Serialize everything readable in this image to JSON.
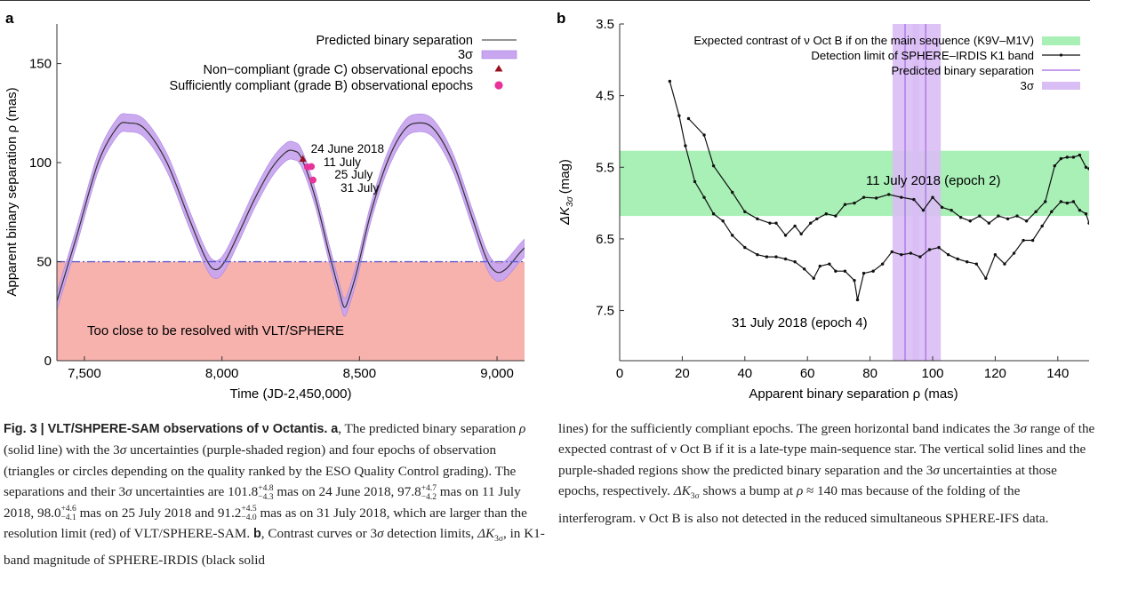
{
  "chart_data": [
    {
      "panel": "a",
      "type": "line",
      "xlabel": "Time (JD-2,450,000)",
      "ylabel": "Apparent binary separation ρ (mas)",
      "xlim": [
        7400,
        9100
      ],
      "ylim": [
        0,
        170
      ],
      "x_ticks": [
        7500,
        8000,
        8500,
        9000
      ],
      "x_tick_labels": [
        "7,500",
        "8,000",
        "8,500",
        "9,000"
      ],
      "y_ticks": [
        0,
        50,
        100,
        150
      ],
      "y_tick_labels": [
        "0",
        "50",
        "100",
        "150"
      ],
      "predicted_separation": {
        "x": [
          7400,
          7470,
          7550,
          7620,
          7660,
          7720,
          7800,
          7880,
          7940,
          7975,
          8010,
          8060,
          8120,
          8180,
          8230,
          8260,
          8290,
          8340,
          8390,
          8430,
          8445,
          8460,
          8490,
          8540,
          8600,
          8660,
          8710,
          8770,
          8840,
          8910,
          8960,
          8995,
          9030,
          9080,
          9100
        ],
        "y": [
          30,
          62,
          100,
          118,
          120,
          117,
          100,
          72,
          52,
          46,
          50,
          64,
          82,
          97,
          105,
          106,
          102,
          82,
          54,
          33,
          27,
          31,
          45,
          74,
          100,
          116,
          120,
          117,
          100,
          72,
          52,
          45,
          46,
          54,
          57
        ]
      },
      "sigma_halfwidth": 4.5,
      "epochs": [
        {
          "label": "24 June 2018",
          "x": 8294,
          "y": 101.8,
          "grade": "C"
        },
        {
          "label": "11 July",
          "x": 8311,
          "y": 97.8,
          "grade": "B"
        },
        {
          "label": "25 July",
          "x": 8325,
          "y": 98.0,
          "grade": "B"
        },
        {
          "label": "31 July",
          "x": 8331,
          "y": 91.2,
          "grade": "B"
        }
      ],
      "resolution_limit": 50,
      "resolution_text": "Too close to be resolved with VLT/SPHERE",
      "legend": [
        "Predicted binary separation",
        "3σ",
        "Non−compliant (grade C) observational epochs",
        "Sufficiently compliant (grade B) observational epochs"
      ],
      "legend_position": "top-right",
      "colors": {
        "line": "#333333",
        "band": "#c9a6f0",
        "band_edge": "#a77fe0",
        "red_region": "#f7b2ad",
        "dash": "#5a5fd0",
        "triangle": "#9b1020",
        "circle": "#e8339a"
      }
    },
    {
      "panel": "b",
      "type": "line",
      "xlabel": "Apparent binary separation ρ (mas)",
      "ylabel": "ΔK3σ (mag)",
      "ylabel_main": "ΔK",
      "ylabel_sub": "3σ",
      "ylabel_unit": "(mag)",
      "xlim": [
        0,
        150
      ],
      "ylim_inverted": [
        3.5,
        8.2
      ],
      "x_ticks": [
        0,
        20,
        40,
        60,
        80,
        100,
        120,
        140
      ],
      "x_tick_labels": [
        "0",
        "20",
        "40",
        "60",
        "80",
        "100",
        "120",
        "140"
      ],
      "y_ticks": [
        3.5,
        4.5,
        5.5,
        6.5,
        7.5
      ],
      "y_tick_labels": [
        "3.5",
        "4.5",
        "5.5",
        "6.5",
        "7.5"
      ],
      "expected_contrast_band": [
        5.27,
        6.18
      ],
      "series": [
        {
          "name": "11 July 2018 (epoch 2)",
          "x": [
            22,
            27,
            30,
            36,
            40,
            44,
            48,
            50,
            53,
            56,
            58,
            61,
            63,
            66,
            69,
            72,
            75,
            78,
            82,
            86,
            90,
            94,
            97,
            100,
            103,
            106,
            109,
            112,
            115,
            118,
            121,
            124,
            127,
            130,
            133,
            136,
            139,
            141,
            143,
            145,
            147,
            149,
            150
          ],
          "y": [
            4.82,
            5.05,
            5.48,
            5.85,
            6.12,
            6.22,
            6.28,
            6.28,
            6.45,
            6.32,
            6.43,
            6.28,
            6.22,
            6.15,
            6.18,
            6.02,
            6.0,
            5.92,
            5.93,
            5.88,
            5.92,
            5.95,
            6.1,
            5.92,
            6.06,
            6.1,
            6.2,
            6.25,
            6.18,
            6.28,
            6.18,
            6.22,
            6.18,
            6.25,
            6.12,
            5.98,
            5.48,
            5.38,
            5.36,
            5.36,
            5.33,
            5.5,
            5.52
          ]
        },
        {
          "name": "31 July 2018 (epoch 4)",
          "x": [
            16,
            19,
            21,
            24,
            27,
            30,
            33,
            36,
            40,
            44,
            47,
            50,
            53,
            56,
            59,
            62,
            64,
            67,
            69,
            72,
            75,
            76,
            78,
            81,
            84,
            87,
            90,
            93,
            96,
            99,
            102,
            105,
            108,
            111,
            114,
            117,
            120,
            123,
            126,
            129,
            132,
            135,
            138,
            141,
            143,
            145,
            147,
            149,
            150
          ],
          "y": [
            4.3,
            4.78,
            5.2,
            5.7,
            5.92,
            6.15,
            6.25,
            6.45,
            6.62,
            6.72,
            6.75,
            6.75,
            6.78,
            6.82,
            6.92,
            7.05,
            6.88,
            6.85,
            6.95,
            6.95,
            7.08,
            7.35,
            6.98,
            6.95,
            6.85,
            6.68,
            6.72,
            6.7,
            6.75,
            6.65,
            6.62,
            6.72,
            6.78,
            6.82,
            6.85,
            7.05,
            6.72,
            6.85,
            6.7,
            6.52,
            6.52,
            6.32,
            6.12,
            5.98,
            6.0,
            5.98,
            6.1,
            6.15,
            6.28
          ]
        }
      ],
      "epoch_lines": [
        {
          "label": "11 July 2018 (epoch 2)",
          "x": 97.8,
          "band": [
            93.6,
            102.6
          ]
        },
        {
          "label": "31 July 2018 (epoch 4)",
          "x": 91.2,
          "band": [
            87.2,
            95.7
          ]
        }
      ],
      "legend": [
        "Expected contrast of ν Oct B if on the main sequence (K9V–M1V)",
        "Detection limit of SPHERE–IRDIS K1 band",
        "Predicted binary separation",
        "3σ"
      ],
      "legend_position": "top-right",
      "colors": {
        "line": "#111111",
        "green": "#a8f0b6",
        "purple_line": "#b07de6",
        "purple_band": "#d9bdf5"
      }
    }
  ],
  "caption": {
    "fig_label": "Fig. 3 | VLT/SHPERE-SAM observations of ν Octantis.",
    "panel_a_label": "a",
    "panel_b_label": "b",
    "left": [
      ", The predicted binary separation ",
      " (solid line) with the 3",
      " uncertainties (purple-shaded region) and four epochs of observation (triangles or circles depending on the quality ranked by the ESO Quality Control grading). The separations and their 3",
      " uncertainties are 101.8",
      " mas on 24 June 2018, 97.8",
      " mas on 11 July 2018, 98.0",
      " mas on 25 July 2018 and 91.2",
      " mas as on 31 July 2018, which are larger than the resolution limit (red) of VLT/SPHERE-SAM. ",
      ", Contrast curves or 3",
      " detection limits, ",
      ", in K1-band magnitude of SPHERE-IRDIS (black solid"
    ],
    "symbols": {
      "rho": "ρ",
      "sigma": "σ",
      "dk": "ΔK",
      "dk_sub": "3σ"
    },
    "uncerts": [
      {
        "up": "+4.8",
        "down": "−4.3"
      },
      {
        "up": "+4.7",
        "down": "−4.2"
      },
      {
        "up": "+4.6",
        "down": "−4.1"
      },
      {
        "up": "+4.5",
        "down": "−4.0"
      }
    ],
    "right": [
      "lines) for the sufficiently compliant epochs. The green horizontal band indicates the 3",
      " range of the expected contrast of ν Oct B if it is a late-type main-sequence star. The vertical solid lines and the purple-shaded regions show the predicted binary separation and the 3",
      " uncertainties at those epochs, respectively. ",
      " shows a bump at ",
      " ≈ 140 mas because of the folding of the interferogram. ν Oct B is also not detected in the reduced simultaneous SPHERE-IFS data."
    ]
  }
}
